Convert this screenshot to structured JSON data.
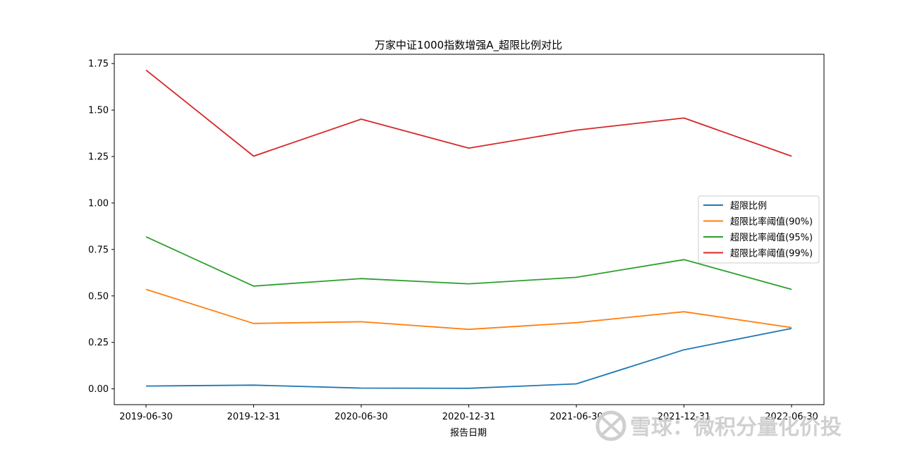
{
  "chart_data": {
    "type": "line",
    "title": "万家中证1000指数增强A_超限比例对比",
    "xlabel": "报告日期",
    "ylabel": "",
    "categories": [
      "2019-06-30",
      "2019-12-31",
      "2020-06-30",
      "2020-12-31",
      "2021-06-30",
      "2021-12-31",
      "2022-06-30"
    ],
    "ylim": [
      -0.085,
      1.8
    ],
    "yticks": [
      0.0,
      0.25,
      0.5,
      0.75,
      1.0,
      1.25,
      1.5,
      1.75
    ],
    "ytick_labels": [
      "0.00",
      "0.25",
      "0.50",
      "0.75",
      "1.00",
      "1.25",
      "1.50",
      "1.75"
    ],
    "grid": false,
    "legend_position": "center-right",
    "series": [
      {
        "name": "超限比例",
        "color": "#1f77b4",
        "values": [
          0.015,
          0.02,
          0.004,
          0.003,
          0.027,
          0.21,
          0.325
        ]
      },
      {
        "name": "超限比率阈值(90%)",
        "color": "#ff7f0e",
        "values": [
          0.535,
          0.352,
          0.361,
          0.32,
          0.356,
          0.415,
          0.33
        ]
      },
      {
        "name": "超限比率阈值(95%)",
        "color": "#2ca02c",
        "values": [
          0.818,
          0.553,
          0.593,
          0.565,
          0.6,
          0.695,
          0.535
        ]
      },
      {
        "name": "超限比率阈值(99%)",
        "color": "#d62728",
        "values": [
          1.715,
          1.252,
          1.451,
          1.295,
          1.392,
          1.457,
          1.252
        ]
      }
    ]
  },
  "watermark": {
    "text": "雪球：微积分量化价投",
    "icon": "snowball-logo-icon"
  }
}
